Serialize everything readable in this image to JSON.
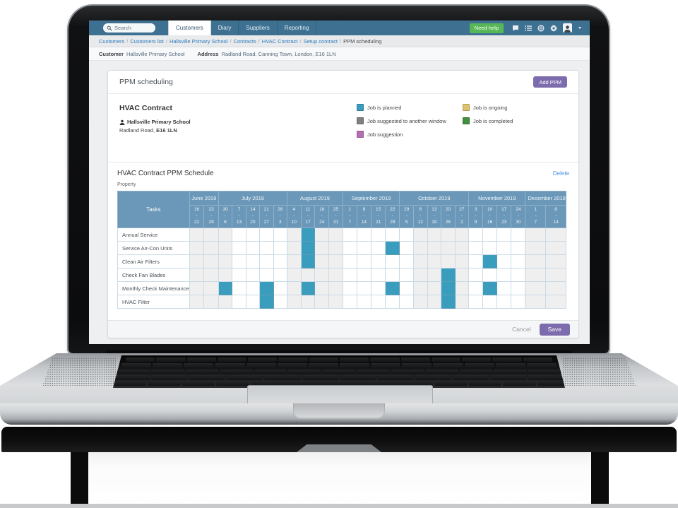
{
  "topbar": {
    "search_placeholder": "Search",
    "tabs": [
      {
        "label": "Customers",
        "active": true
      },
      {
        "label": "Diary",
        "active": false
      },
      {
        "label": "Suppliers",
        "active": false
      },
      {
        "label": "Reporting",
        "active": false
      }
    ],
    "need_help_label": "Need help",
    "icon_names": [
      "chat-icon",
      "list-icon",
      "globe-icon",
      "gear-icon",
      "user-avatar",
      "caret-down-icon"
    ]
  },
  "breadcrumb": {
    "separator": "/",
    "items": [
      {
        "label": "Customers",
        "link": true
      },
      {
        "label": "Customers list",
        "link": true
      },
      {
        "label": "Hallsville Primary School",
        "link": true
      },
      {
        "label": "Contracts",
        "link": true
      },
      {
        "label": "HVAC Contract",
        "link": true
      },
      {
        "label": "Setup contract",
        "link": true
      },
      {
        "label": "PPM scheduling",
        "link": false
      }
    ]
  },
  "customer_bar": {
    "customer_label": "Customer",
    "customer_value": "Hallsville Primary School",
    "address_label": "Address",
    "address_value": "Radland Road, Canning Town, London, E16 1LN"
  },
  "ppm_panel": {
    "title": "PPM scheduling",
    "add_button_label": "Add PPM",
    "contract": {
      "title": "HVAC Contract",
      "site": "Hallsville Primary School",
      "address": "Radland Road,",
      "postcode": "E16 1LN"
    },
    "legend": {
      "column1": [
        {
          "label": "Job is planned",
          "color": "#3A9DBD"
        },
        {
          "label": "Job suggested to another window",
          "color": "#7E8184"
        },
        {
          "label": "Job suggestion",
          "color": "#B36FB3"
        }
      ],
      "column2": [
        {
          "label": "Job is ongoing",
          "color": "#DFC06C"
        },
        {
          "label": "Job is completed",
          "color": "#3F8F3F"
        }
      ]
    },
    "footer": {
      "cancel_label": "Cancel",
      "save_label": "Save"
    }
  },
  "schedule": {
    "title": "HVAC Contract PPM Schedule",
    "delete_label": "Delete",
    "property_label": "Property",
    "tasks_header": "Tasks",
    "planned_color": "#3A9DBD",
    "months": [
      {
        "label": "June 2019",
        "weeks": [
          {
            "start": 16,
            "end": 22,
            "shaded": true
          },
          {
            "start": 23,
            "end": 29,
            "shaded": true
          }
        ]
      },
      {
        "label": "July 2019",
        "weeks": [
          {
            "start": 30,
            "end": 6,
            "shaded": true
          },
          {
            "start": 7,
            "end": 13,
            "shaded": false
          },
          {
            "start": 14,
            "end": 20,
            "shaded": false
          },
          {
            "start": 21,
            "end": 27,
            "shaded": false
          },
          {
            "start": 28,
            "end": 3,
            "shaded": false
          }
        ]
      },
      {
        "label": "August 2019",
        "weeks": [
          {
            "start": 4,
            "end": 10,
            "shaded": true
          },
          {
            "start": 11,
            "end": 17,
            "shaded": true
          },
          {
            "start": 18,
            "end": 24,
            "shaded": true
          },
          {
            "start": 25,
            "end": 31,
            "shaded": true
          }
        ]
      },
      {
        "label": "September 2019",
        "weeks": [
          {
            "start": 1,
            "end": 7,
            "shaded": false
          },
          {
            "start": 8,
            "end": 14,
            "shaded": false
          },
          {
            "start": 15,
            "end": 21,
            "shaded": false
          },
          {
            "start": 22,
            "end": 28,
            "shaded": false
          }
        ]
      },
      {
        "label": "October 2019",
        "weeks": [
          {
            "start": 29,
            "end": 5,
            "shaded": false
          },
          {
            "start": 6,
            "end": 12,
            "shaded": true
          },
          {
            "start": 13,
            "end": 19,
            "shaded": true
          },
          {
            "start": 20,
            "end": 26,
            "shaded": true
          },
          {
            "start": 27,
            "end": 2,
            "shaded": true
          }
        ]
      },
      {
        "label": "November 2019",
        "weeks": [
          {
            "start": 3,
            "end": 9,
            "shaded": false
          },
          {
            "start": 10,
            "end": 16,
            "shaded": false
          },
          {
            "start": 17,
            "end": 23,
            "shaded": false
          },
          {
            "start": 24,
            "end": 30,
            "shaded": false
          }
        ]
      },
      {
        "label": "December 2019",
        "weeks": [
          {
            "start": 1,
            "end": 7,
            "shaded": true
          },
          {
            "start": 8,
            "end": 14,
            "shaded": true
          }
        ]
      }
    ],
    "rows": [
      {
        "task": "Annual Service",
        "planned_columns": [
          8
        ]
      },
      {
        "task": "Service Air-Con Units",
        "planned_columns": [
          8,
          14
        ]
      },
      {
        "task": "Clean Air Filters",
        "planned_columns": [
          8,
          21
        ]
      },
      {
        "task": "Check Fan Blades",
        "planned_columns": [
          18
        ]
      },
      {
        "task": "Monthly Check Maintenance",
        "planned_columns": [
          2,
          5,
          8,
          14,
          18,
          21
        ]
      },
      {
        "task": "HVAC Filter",
        "planned_columns": [
          5,
          18
        ]
      }
    ]
  }
}
